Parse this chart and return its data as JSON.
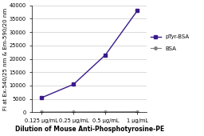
{
  "x_values": [
    0.125,
    0.25,
    0.5,
    1.0
  ],
  "x_labels": [
    "0.125 μg/mL",
    "0.25 μg/mL",
    "0.5 μg/mL",
    "1 μg/mL"
  ],
  "pTyr_BSA": [
    5500,
    10500,
    21500,
    38000
  ],
  "BSA": [
    150,
    180,
    200,
    250
  ],
  "pTyr_color": "#3b1a8a",
  "BSA_color": "#808080",
  "ylim": [
    0,
    40000
  ],
  "yticks": [
    0,
    5000,
    10000,
    15000,
    20000,
    25000,
    30000,
    35000,
    40000
  ],
  "ylabel": "FI at Ex-540/25 nm & Em-590/20 nm",
  "xlabel": "Dilution of Mouse Anti-Phosphotyrosine-PE",
  "legend_pTyr": "pTyr-BSA",
  "legend_BSA": "BSA",
  "label_fontsize": 5.0,
  "tick_fontsize": 4.8,
  "legend_fontsize": 5.0,
  "background_color": "#ffffff",
  "grid_color": "#cccccc"
}
